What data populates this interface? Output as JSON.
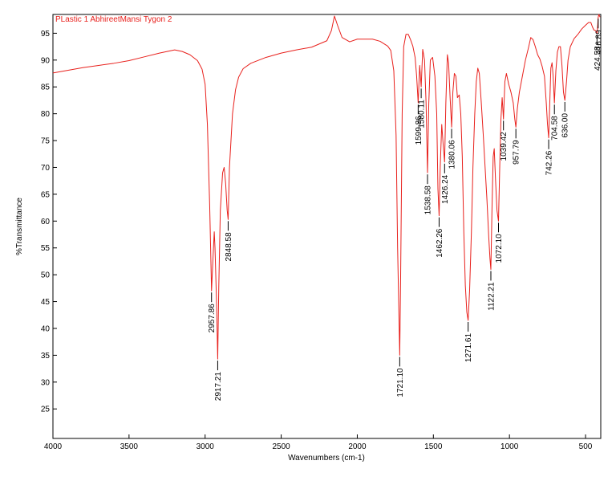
{
  "chart_data": {
    "type": "line",
    "title": "PLastic 1 AbhireetMansi Tygon 2",
    "xlabel": "Wavenumbers (cm-1)",
    "ylabel": "%Transmittance",
    "xlim": [
      4000,
      400
    ],
    "ylim": [
      19.5,
      98.5
    ],
    "x_ticks": [
      4000,
      3500,
      3000,
      2500,
      2000,
      1500,
      1000,
      500
    ],
    "y_ticks": [
      25,
      30,
      35,
      40,
      45,
      50,
      55,
      60,
      65,
      70,
      75,
      80,
      85,
      90,
      95
    ],
    "x_reversed": true,
    "grid": false,
    "line_color": "#e8201c",
    "series": [
      {
        "points": [
          [
            4000,
            87.6
          ],
          [
            3900,
            88.1
          ],
          [
            3800,
            88.6
          ],
          [
            3700,
            89.0
          ],
          [
            3600,
            89.4
          ],
          [
            3500,
            89.9
          ],
          [
            3400,
            90.6
          ],
          [
            3300,
            91.3
          ],
          [
            3200,
            91.9
          ],
          [
            3150,
            91.6
          ],
          [
            3100,
            91.0
          ],
          [
            3050,
            89.9
          ],
          [
            3020,
            88.3
          ],
          [
            3000,
            85.5
          ],
          [
            2985,
            78.0
          ],
          [
            2970,
            63.0
          ],
          [
            2960,
            50.0
          ],
          [
            2957.86,
            47.0
          ],
          [
            2950,
            52.0
          ],
          [
            2940,
            58.0
          ],
          [
            2935,
            55.0
          ],
          [
            2925,
            45.0
          ],
          [
            2917.21,
            34.3
          ],
          [
            2910,
            48.0
          ],
          [
            2900,
            62.0
          ],
          [
            2885,
            69.0
          ],
          [
            2875,
            70.0
          ],
          [
            2865,
            67.0
          ],
          [
            2855,
            62.0
          ],
          [
            2848.58,
            60.3
          ],
          [
            2840,
            70.0
          ],
          [
            2820,
            80.0
          ],
          [
            2800,
            84.5
          ],
          [
            2780,
            86.8
          ],
          [
            2750,
            88.4
          ],
          [
            2700,
            89.4
          ],
          [
            2600,
            90.5
          ],
          [
            2500,
            91.3
          ],
          [
            2400,
            91.9
          ],
          [
            2300,
            92.4
          ],
          [
            2200,
            93.6
          ],
          [
            2170,
            95.5
          ],
          [
            2150,
            98.2
          ],
          [
            2130,
            96.5
          ],
          [
            2100,
            94.2
          ],
          [
            2050,
            93.4
          ],
          [
            2000,
            93.9
          ],
          [
            1900,
            93.9
          ],
          [
            1850,
            93.5
          ],
          [
            1800,
            92.6
          ],
          [
            1780,
            91.8
          ],
          [
            1760,
            88.0
          ],
          [
            1745,
            76.0
          ],
          [
            1735,
            55.0
          ],
          [
            1721.1,
            35.0
          ],
          [
            1715,
            50.0
          ],
          [
            1705,
            80.0
          ],
          [
            1695,
            92.5
          ],
          [
            1680,
            94.8
          ],
          [
            1665,
            94.8
          ],
          [
            1650,
            93.8
          ],
          [
            1635,
            92.6
          ],
          [
            1620,
            90.5
          ],
          [
            1610,
            87.0
          ],
          [
            1599.86,
            82.0
          ],
          [
            1590,
            89.0
          ],
          [
            1580.11,
            85.0
          ],
          [
            1570,
            92.0
          ],
          [
            1558,
            90.0
          ],
          [
            1548,
            82.0
          ],
          [
            1538.58,
            69.0
          ],
          [
            1530,
            82.0
          ],
          [
            1520,
            90.0
          ],
          [
            1505,
            90.5
          ],
          [
            1490,
            87.0
          ],
          [
            1478,
            80.0
          ],
          [
            1470,
            66.0
          ],
          [
            1462.26,
            61.0
          ],
          [
            1455,
            70.0
          ],
          [
            1445,
            78.0
          ],
          [
            1435,
            74.0
          ],
          [
            1426.24,
            71.0
          ],
          [
            1418,
            82.0
          ],
          [
            1408,
            91.0
          ],
          [
            1400,
            89.5
          ],
          [
            1390,
            83.0
          ],
          [
            1380.06,
            77.5
          ],
          [
            1372,
            84.0
          ],
          [
            1362,
            87.5
          ],
          [
            1352,
            87.0
          ],
          [
            1342,
            83.0
          ],
          [
            1330,
            83.5
          ],
          [
            1320,
            80.0
          ],
          [
            1310,
            72.0
          ],
          [
            1300,
            58.0
          ],
          [
            1290,
            48.0
          ],
          [
            1280,
            43.0
          ],
          [
            1271.61,
            41.5
          ],
          [
            1262,
            47.0
          ],
          [
            1250,
            58.0
          ],
          [
            1240,
            70.0
          ],
          [
            1228,
            80.0
          ],
          [
            1218,
            86.0
          ],
          [
            1208,
            88.5
          ],
          [
            1198,
            87.5
          ],
          [
            1185,
            82.0
          ],
          [
            1172,
            76.0
          ],
          [
            1160,
            70.0
          ],
          [
            1148,
            64.0
          ],
          [
            1136,
            57.0
          ],
          [
            1128,
            53.0
          ],
          [
            1122.21,
            51.0
          ],
          [
            1115,
            62.0
          ],
          [
            1107,
            72.0
          ],
          [
            1100,
            73.5
          ],
          [
            1092,
            68.0
          ],
          [
            1082,
            62.0
          ],
          [
            1072.1,
            60.0
          ],
          [
            1064,
            70.0
          ],
          [
            1056,
            79.0
          ],
          [
            1048,
            83.0
          ],
          [
            1039.42,
            79.0
          ],
          [
            1030,
            86.0
          ],
          [
            1020,
            87.5
          ],
          [
            1005,
            85.5
          ],
          [
            990,
            84.0
          ],
          [
            975,
            82.0
          ],
          [
            965,
            79.0
          ],
          [
            957.79,
            77.5
          ],
          [
            948,
            81.0
          ],
          [
            935,
            84.0
          ],
          [
            915,
            87.0
          ],
          [
            895,
            90.0
          ],
          [
            875,
            92.3
          ],
          [
            860,
            94.2
          ],
          [
            845,
            93.8
          ],
          [
            830,
            92.5
          ],
          [
            815,
            91.0
          ],
          [
            800,
            90.2
          ],
          [
            785,
            88.8
          ],
          [
            770,
            87.0
          ],
          [
            758,
            82.0
          ],
          [
            750,
            78.0
          ],
          [
            742.26,
            75.5
          ],
          [
            735,
            82.0
          ],
          [
            728,
            88.5
          ],
          [
            720,
            89.5
          ],
          [
            713,
            87.0
          ],
          [
            704.58,
            82.0
          ],
          [
            695,
            88.0
          ],
          [
            685,
            91.5
          ],
          [
            675,
            92.5
          ],
          [
            665,
            92.5
          ],
          [
            655,
            89.0
          ],
          [
            645,
            84.0
          ],
          [
            636,
            82.5
          ],
          [
            625,
            86.0
          ],
          [
            615,
            90.0
          ],
          [
            600,
            92.5
          ],
          [
            575,
            94.0
          ],
          [
            550,
            94.8
          ],
          [
            525,
            95.8
          ],
          [
            500,
            96.5
          ],
          [
            480,
            97.0
          ],
          [
            465,
            97.0
          ],
          [
            455,
            96.2
          ],
          [
            445,
            95.6
          ],
          [
            435,
            95.5
          ],
          [
            424.58,
            95.0
          ],
          [
            420,
            96.5
          ],
          [
            416.89,
            98.0
          ],
          [
            412,
            98.5
          ],
          [
            405,
            98.0
          ]
        ]
      }
    ],
    "peak_labels": [
      {
        "x": 2957.86,
        "y": 47.0,
        "text": "2957.86"
      },
      {
        "x": 2917.21,
        "y": 34.3,
        "text": "2917.21"
      },
      {
        "x": 2848.58,
        "y": 60.3,
        "text": "2848.58"
      },
      {
        "x": 1721.1,
        "y": 35.0,
        "text": "1721.10"
      },
      {
        "x": 1599.86,
        "y": 82.0,
        "text": "1599.86"
      },
      {
        "x": 1580.11,
        "y": 85.0,
        "text": "1580.11"
      },
      {
        "x": 1538.58,
        "y": 69.0,
        "text": "1538.58"
      },
      {
        "x": 1462.26,
        "y": 61.0,
        "text": "1462.26"
      },
      {
        "x": 1426.24,
        "y": 71.0,
        "text": "1426.24"
      },
      {
        "x": 1380.06,
        "y": 77.5,
        "text": "1380.06"
      },
      {
        "x": 1271.61,
        "y": 41.5,
        "text": "1271.61"
      },
      {
        "x": 1122.21,
        "y": 51.0,
        "text": "1122.21"
      },
      {
        "x": 1072.1,
        "y": 60.0,
        "text": "1072.10"
      },
      {
        "x": 1039.42,
        "y": 79.0,
        "text": "1039.42"
      },
      {
        "x": 957.79,
        "y": 77.5,
        "text": "957.79"
      },
      {
        "x": 742.26,
        "y": 75.5,
        "text": "742.26"
      },
      {
        "x": 704.58,
        "y": 82.0,
        "text": "704.58"
      },
      {
        "x": 636.0,
        "y": 82.5,
        "text": "636.00"
      },
      {
        "x": 424.58,
        "y": 95.0,
        "text": "424.58"
      },
      {
        "x": 416.89,
        "y": 98.0,
        "text": "416.89"
      }
    ]
  }
}
